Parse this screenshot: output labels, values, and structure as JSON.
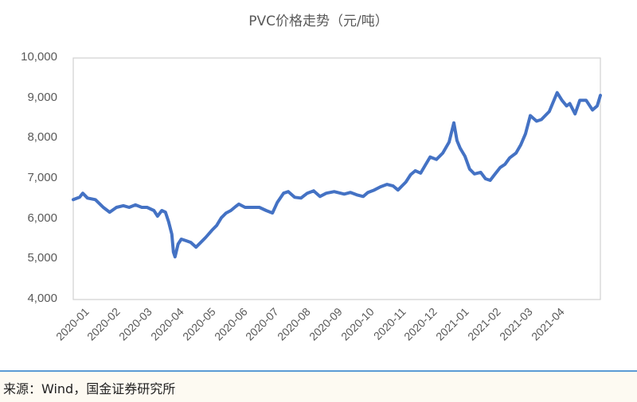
{
  "chart_data": {
    "type": "line",
    "title": "PVC价格走势（元/吨）",
    "xlabel": "",
    "ylabel": "",
    "ylim": [
      4000,
      10000
    ],
    "yticks": [
      "10,000",
      "9,000",
      "8,000",
      "7,000",
      "6,000",
      "5,000",
      "4,000"
    ],
    "xticks": [
      "2020-01",
      "2020-02",
      "2020-03",
      "2020-04",
      "2020-05",
      "2020-06",
      "2020-07",
      "2020-08",
      "2020-09",
      "2020-10",
      "2020-11",
      "2020-12",
      "2021-01",
      "2021-02",
      "2021-03",
      "2021-04"
    ],
    "grid": false,
    "legend": "none",
    "series": [
      {
        "name": "PVC价格",
        "color": "#4472c4",
        "points": [
          [
            0.0,
            6480
          ],
          [
            0.012,
            6540
          ],
          [
            0.018,
            6640
          ],
          [
            0.027,
            6520
          ],
          [
            0.042,
            6480
          ],
          [
            0.057,
            6290
          ],
          [
            0.069,
            6170
          ],
          [
            0.082,
            6290
          ],
          [
            0.095,
            6330
          ],
          [
            0.106,
            6290
          ],
          [
            0.118,
            6350
          ],
          [
            0.13,
            6290
          ],
          [
            0.14,
            6290
          ],
          [
            0.153,
            6210
          ],
          [
            0.16,
            6070
          ],
          [
            0.168,
            6210
          ],
          [
            0.175,
            6170
          ],
          [
            0.181,
            5930
          ],
          [
            0.187,
            5620
          ],
          [
            0.19,
            5180
          ],
          [
            0.193,
            5060
          ],
          [
            0.199,
            5380
          ],
          [
            0.205,
            5500
          ],
          [
            0.214,
            5460
          ],
          [
            0.223,
            5420
          ],
          [
            0.233,
            5300
          ],
          [
            0.239,
            5380
          ],
          [
            0.251,
            5540
          ],
          [
            0.263,
            5720
          ],
          [
            0.272,
            5840
          ],
          [
            0.281,
            6030
          ],
          [
            0.29,
            6150
          ],
          [
            0.299,
            6210
          ],
          [
            0.308,
            6310
          ],
          [
            0.314,
            6370
          ],
          [
            0.326,
            6290
          ],
          [
            0.341,
            6290
          ],
          [
            0.353,
            6290
          ],
          [
            0.366,
            6210
          ],
          [
            0.378,
            6150
          ],
          [
            0.387,
            6410
          ],
          [
            0.399,
            6640
          ],
          [
            0.408,
            6680
          ],
          [
            0.42,
            6540
          ],
          [
            0.432,
            6520
          ],
          [
            0.444,
            6640
          ],
          [
            0.456,
            6700
          ],
          [
            0.468,
            6560
          ],
          [
            0.48,
            6640
          ],
          [
            0.495,
            6680
          ],
          [
            0.514,
            6620
          ],
          [
            0.526,
            6660
          ],
          [
            0.538,
            6600
          ],
          [
            0.55,
            6560
          ],
          [
            0.559,
            6660
          ],
          [
            0.571,
            6720
          ],
          [
            0.583,
            6800
          ],
          [
            0.595,
            6860
          ],
          [
            0.607,
            6820
          ],
          [
            0.616,
            6720
          ],
          [
            0.631,
            6920
          ],
          [
            0.64,
            7100
          ],
          [
            0.649,
            7200
          ],
          [
            0.659,
            7140
          ],
          [
            0.668,
            7340
          ],
          [
            0.677,
            7540
          ],
          [
            0.689,
            7480
          ],
          [
            0.701,
            7640
          ],
          [
            0.713,
            7910
          ],
          [
            0.722,
            8390
          ],
          [
            0.728,
            7950
          ],
          [
            0.734,
            7760
          ],
          [
            0.743,
            7560
          ],
          [
            0.752,
            7240
          ],
          [
            0.761,
            7120
          ],
          [
            0.773,
            7160
          ],
          [
            0.782,
            7000
          ],
          [
            0.791,
            6960
          ],
          [
            0.798,
            7080
          ],
          [
            0.81,
            7280
          ],
          [
            0.819,
            7360
          ],
          [
            0.828,
            7520
          ],
          [
            0.84,
            7640
          ],
          [
            0.849,
            7840
          ],
          [
            0.858,
            8120
          ],
          [
            0.867,
            8570
          ],
          [
            0.879,
            8430
          ],
          [
            0.888,
            8470
          ],
          [
            0.894,
            8550
          ],
          [
            0.903,
            8670
          ],
          [
            0.918,
            9140
          ],
          [
            0.927,
            8950
          ],
          [
            0.936,
            8810
          ],
          [
            0.942,
            8870
          ],
          [
            0.952,
            8610
          ],
          [
            0.961,
            8950
          ],
          [
            0.973,
            8950
          ],
          [
            0.985,
            8710
          ],
          [
            0.994,
            8810
          ],
          [
            1.0,
            9070
          ]
        ]
      }
    ]
  },
  "footer": {
    "source": "来源：Wind，国金证券研究所"
  }
}
